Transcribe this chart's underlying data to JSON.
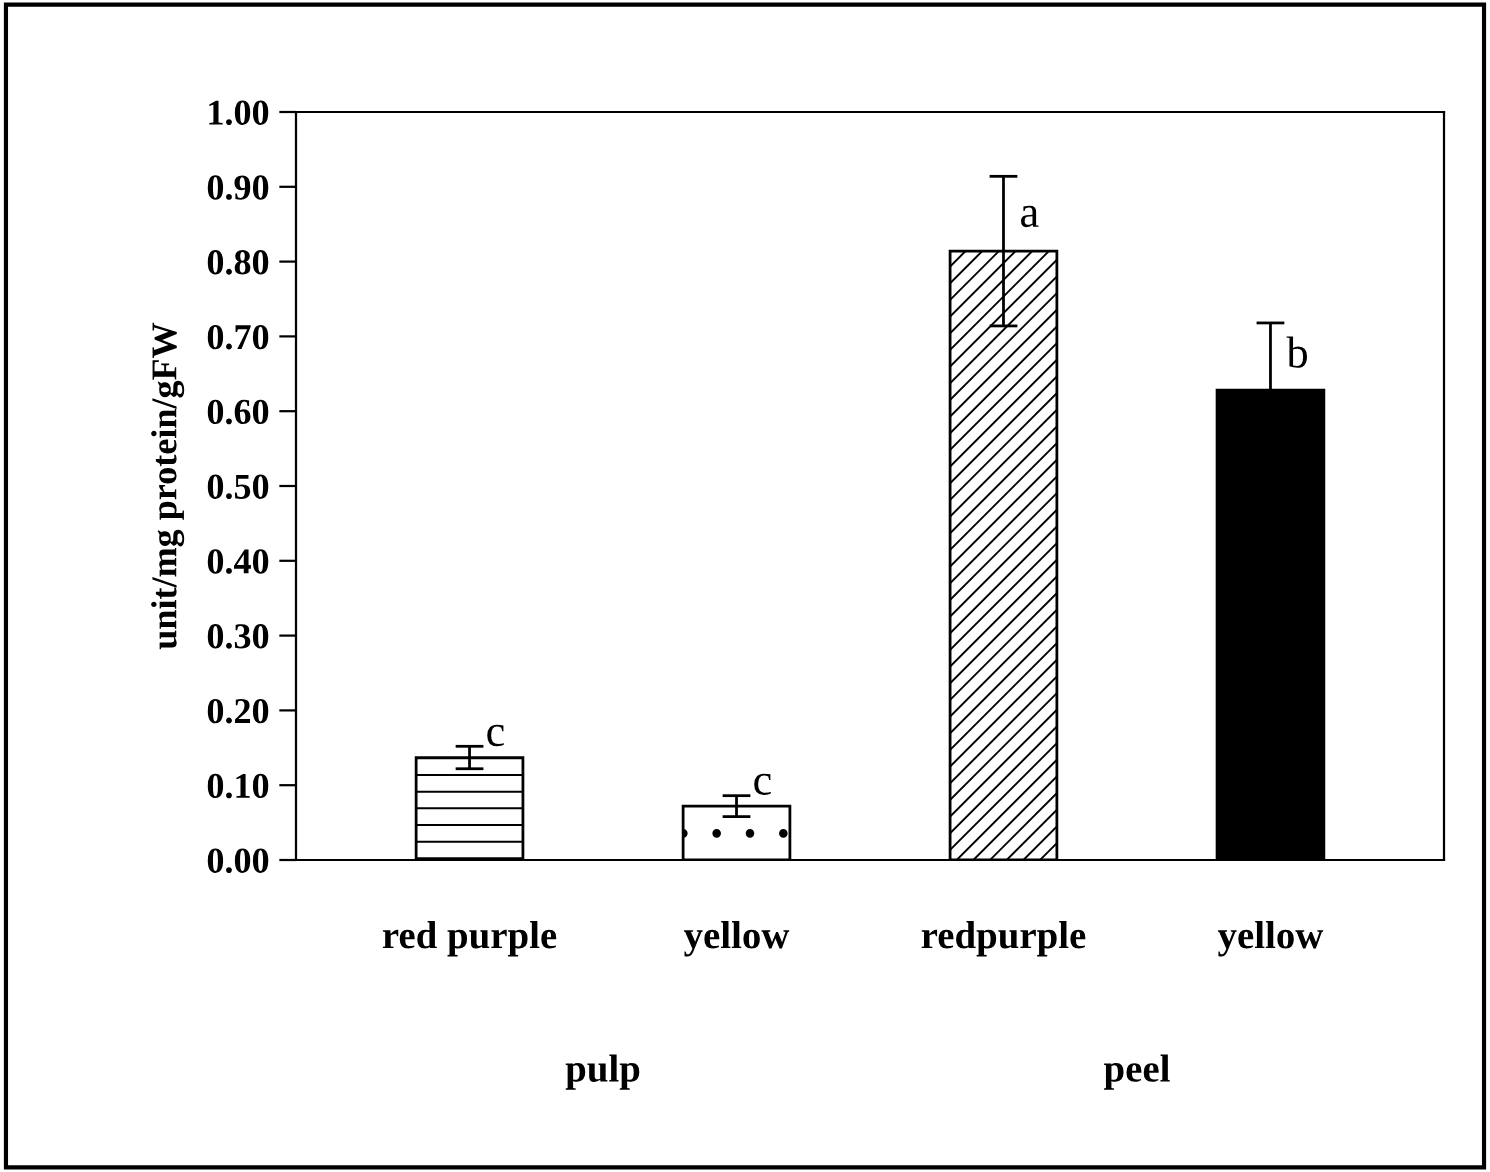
{
  "chart_data": {
    "type": "bar",
    "ylabel": "unit/mg protein/gFW",
    "categories": [
      "red purple",
      "yellow",
      "redpurple",
      "yellow"
    ],
    "values": [
      0.137,
      0.072,
      0.814,
      0.628
    ],
    "errors": [
      0.015,
      0.014,
      0.1,
      0.09
    ],
    "colors": [
      "#ffffff",
      "#ffffff",
      "#ffffff",
      "#000000"
    ],
    "ylim": [
      0,
      1.0
    ],
    "yticks": [
      {
        "value": 0,
        "label": "0.00"
      },
      {
        "value": 0.1,
        "label": "0.10"
      },
      {
        "value": 0.2,
        "label": "0.20"
      },
      {
        "value": 0.3,
        "label": "0.30"
      },
      {
        "value": 0.4,
        "label": "0.40"
      },
      {
        "value": 0.5,
        "label": "0.50"
      },
      {
        "value": 0.6,
        "label": "0.60"
      },
      {
        "value": 0.7,
        "label": "0.70"
      },
      {
        "value": 0.8,
        "label": "0.80"
      },
      {
        "value": 0.9,
        "label": "0.90"
      },
      {
        "value": 1.0,
        "label": "1.00"
      }
    ],
    "grid": false,
    "annotations": [
      "c",
      "c",
      "a",
      "b",
      "pulp",
      "peel"
    ]
  }
}
